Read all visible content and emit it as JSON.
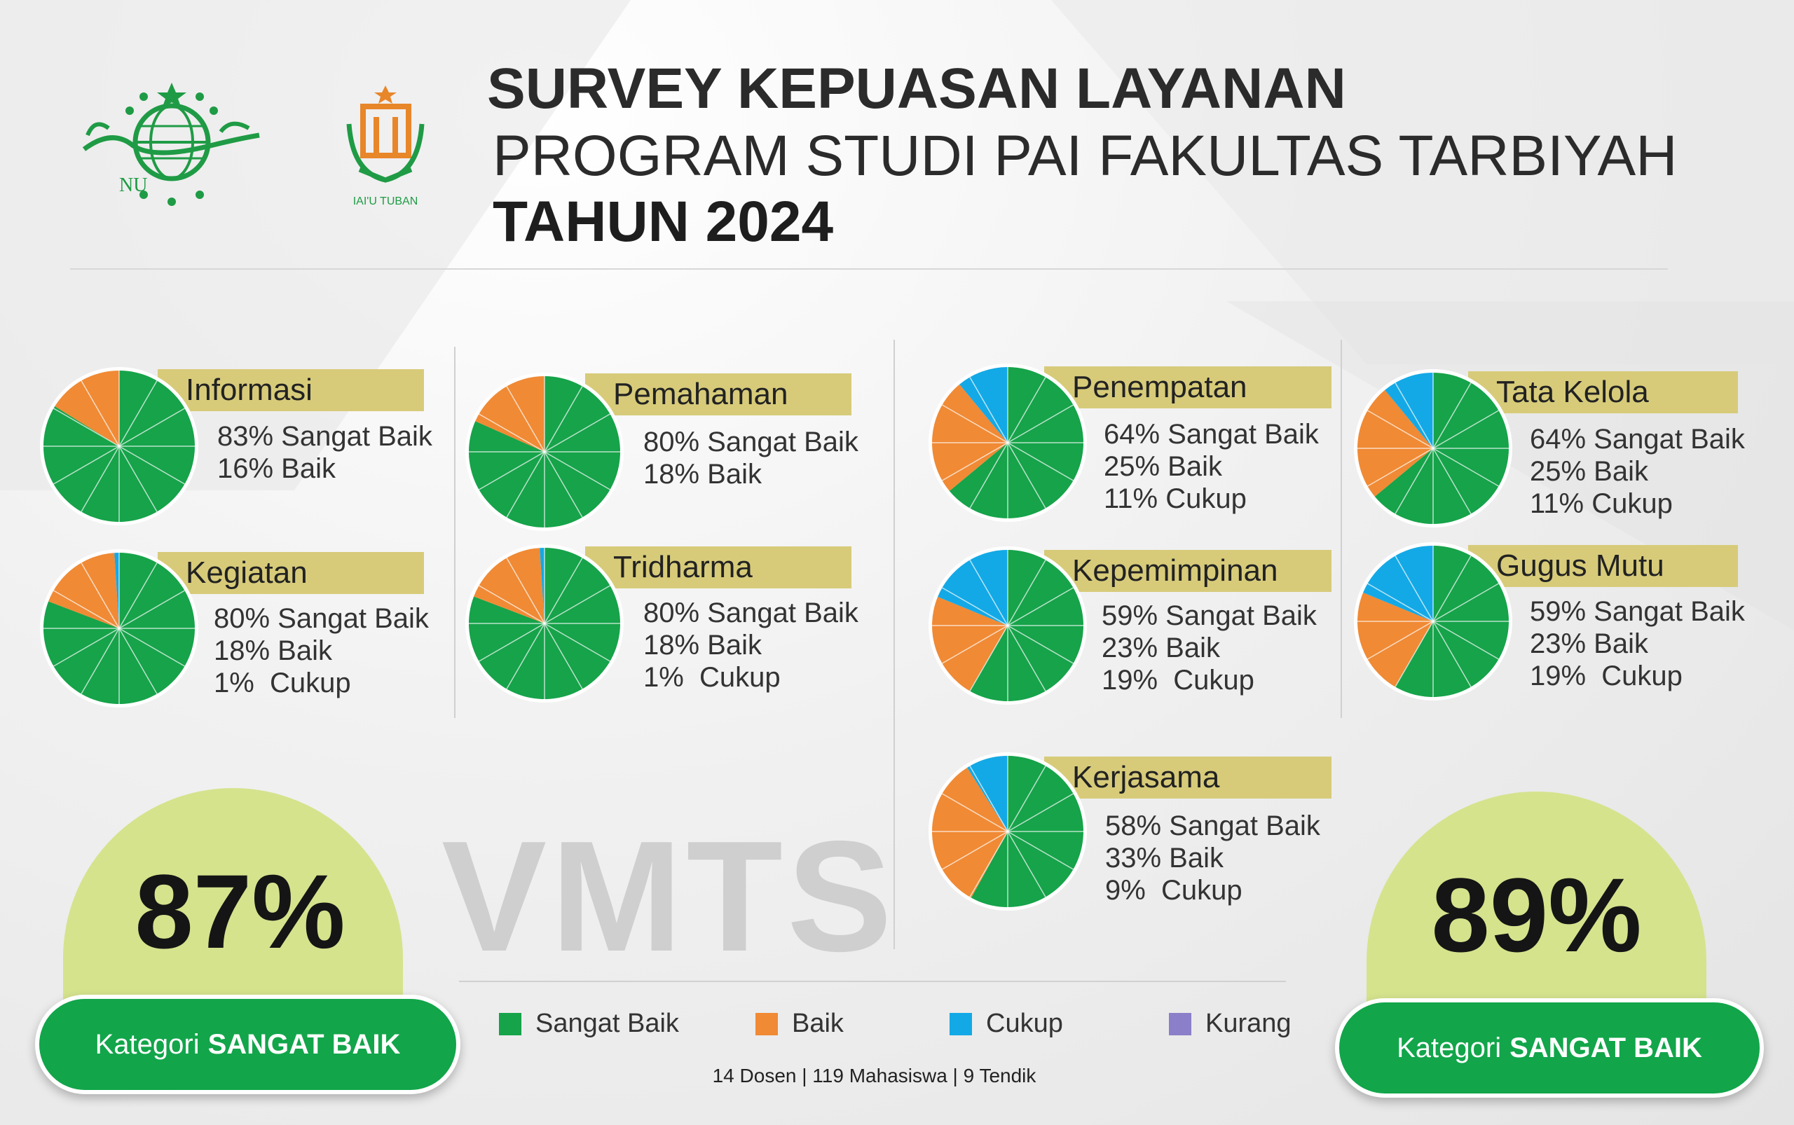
{
  "header": {
    "line1": "SURVEY KEPUASAN LAYANAN",
    "line2": "PROGRAM STUDI PAI FAKULTAS TARBIYAH",
    "line3": "TAHUN 2024"
  },
  "logos": {
    "nu": "NU",
    "iai": "IAI'U TUBAN"
  },
  "colors": {
    "sangat_baik": "#16a34a",
    "baik": "#f08a35",
    "cukup": "#13a9e6",
    "kurang": "#8a7fc8",
    "label_bar": "#d7cb7a",
    "dome": "#d5e38d",
    "pill": "#12a54a"
  },
  "chart_data": [
    {
      "type": "pie",
      "title": "Informasi",
      "categories": [
        "Sangat Baik",
        "Baik"
      ],
      "values": [
        83,
        16
      ],
      "lines": [
        "83% Sangat Baik",
        "16% Baik"
      ]
    },
    {
      "type": "pie",
      "title": "Kegiatan",
      "categories": [
        "Sangat Baik",
        "Baik",
        "Cukup"
      ],
      "values": [
        80,
        18,
        1
      ],
      "lines": [
        "80% Sangat Baik",
        "18% Baik",
        "1%  Cukup"
      ]
    },
    {
      "type": "pie",
      "title": "Pemahaman",
      "categories": [
        "Sangat Baik",
        "Baik"
      ],
      "values": [
        80,
        18
      ],
      "lines": [
        "80% Sangat Baik",
        "18% Baik"
      ]
    },
    {
      "type": "pie",
      "title": "Tridharma",
      "categories": [
        "Sangat Baik",
        "Baik",
        "Cukup"
      ],
      "values": [
        80,
        18,
        1
      ],
      "lines": [
        "80% Sangat Baik",
        "18% Baik",
        "1%  Cukup"
      ]
    },
    {
      "type": "pie",
      "title": "Penempatan",
      "categories": [
        "Sangat Baik",
        "Baik",
        "Cukup"
      ],
      "values": [
        64,
        25,
        11
      ],
      "lines": [
        "64% Sangat Baik",
        "25% Baik",
        "11% Cukup"
      ]
    },
    {
      "type": "pie",
      "title": "Kepemimpinan",
      "categories": [
        "Sangat Baik",
        "Baik",
        "Cukup"
      ],
      "values": [
        59,
        23,
        19
      ],
      "lines": [
        "59% Sangat Baik",
        "23% Baik",
        "19%  Cukup"
      ]
    },
    {
      "type": "pie",
      "title": "Kerjasama",
      "categories": [
        "Sangat Baik",
        "Baik",
        "Cukup"
      ],
      "values": [
        58,
        33,
        9
      ],
      "lines": [
        "58% Sangat Baik",
        "33% Baik",
        "9%  Cukup"
      ]
    },
    {
      "type": "pie",
      "title": "Tata Kelola",
      "categories": [
        "Sangat Baik",
        "Baik",
        "Cukup"
      ],
      "values": [
        64,
        25,
        11
      ],
      "lines": [
        "64% Sangat Baik",
        "25% Baik",
        "11% Cukup"
      ]
    },
    {
      "type": "pie",
      "title": "Gugus Mutu",
      "categories": [
        "Sangat Baik",
        "Baik",
        "Cukup"
      ],
      "values": [
        59,
        23,
        19
      ],
      "lines": [
        "59% Sangat Baik",
        "23% Baik",
        "19%  Cukup"
      ]
    }
  ],
  "watermark": "VMTS",
  "summary_left": {
    "score": "87%",
    "prefix": "Kategori",
    "category": "SANGAT BAIK"
  },
  "summary_right": {
    "score": "89%",
    "prefix": "Kategori",
    "category": "SANGAT BAIK"
  },
  "legend": [
    "Sangat Baik",
    "Baik",
    "Cukup",
    "Kurang"
  ],
  "footnote": "14 Dosen | 119 Mahasiswa | 9 Tendik"
}
